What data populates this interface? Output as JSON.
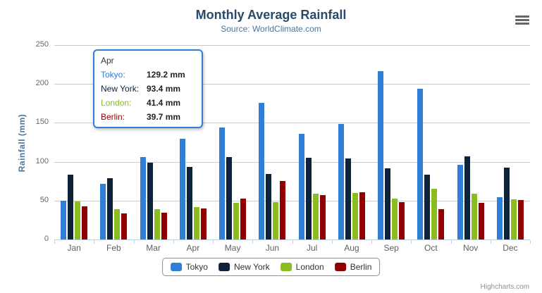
{
  "chart": {
    "title": "Monthly Average Rainfall",
    "subtitle": "Source: WorldClimate.com",
    "credits": "Highcharts.com",
    "accent_colors": {
      "title": "#274b6d",
      "subtitle": "#4d759e",
      "axis_label": "#666666",
      "grid": "#c9c9c9",
      "axis_line": "#c0d0e0",
      "legend_border": "#909090"
    }
  },
  "chart_data": {
    "type": "bar",
    "title": "Monthly Average Rainfall",
    "subtitle": "Source: WorldClimate.com",
    "categories": [
      "Jan",
      "Feb",
      "Mar",
      "Apr",
      "May",
      "Jun",
      "Jul",
      "Aug",
      "Sep",
      "Oct",
      "Nov",
      "Dec"
    ],
    "series": [
      {
        "name": "Tokyo",
        "color": "#2f7ed8",
        "values": [
          49.9,
          71.5,
          106.4,
          129.2,
          144.0,
          176.0,
          135.6,
          148.5,
          216.4,
          194.1,
          95.6,
          54.4
        ]
      },
      {
        "name": "New York",
        "color": "#0d233a",
        "values": [
          83.6,
          78.8,
          98.5,
          93.4,
          106.0,
          84.5,
          105.0,
          104.3,
          91.2,
          83.5,
          106.6,
          92.3
        ]
      },
      {
        "name": "London",
        "color": "#8bbc21",
        "values": [
          48.9,
          38.8,
          39.3,
          41.4,
          47.0,
          48.3,
          59.0,
          59.6,
          52.4,
          65.2,
          59.3,
          51.2
        ]
      },
      {
        "name": "Berlin",
        "color": "#910000",
        "values": [
          42.4,
          33.2,
          34.5,
          39.7,
          52.6,
          75.5,
          57.4,
          60.4,
          47.6,
          39.1,
          46.8,
          51.1
        ]
      }
    ],
    "xlabel": "",
    "ylabel": "Rainfall (mm)",
    "ylim": [
      0,
      250
    ],
    "yticks": [
      0,
      50,
      100,
      150,
      200,
      250
    ],
    "grid": true,
    "legend_position": "bottom"
  },
  "tooltip": {
    "header": "Apr",
    "rows": [
      {
        "label": "Tokyo:",
        "value": "129.2 mm"
      },
      {
        "label": "New York:",
        "value": "93.4 mm"
      },
      {
        "label": "London:",
        "value": "41.4 mm"
      },
      {
        "label": "Berlin:",
        "value": "39.7 mm"
      }
    ]
  }
}
